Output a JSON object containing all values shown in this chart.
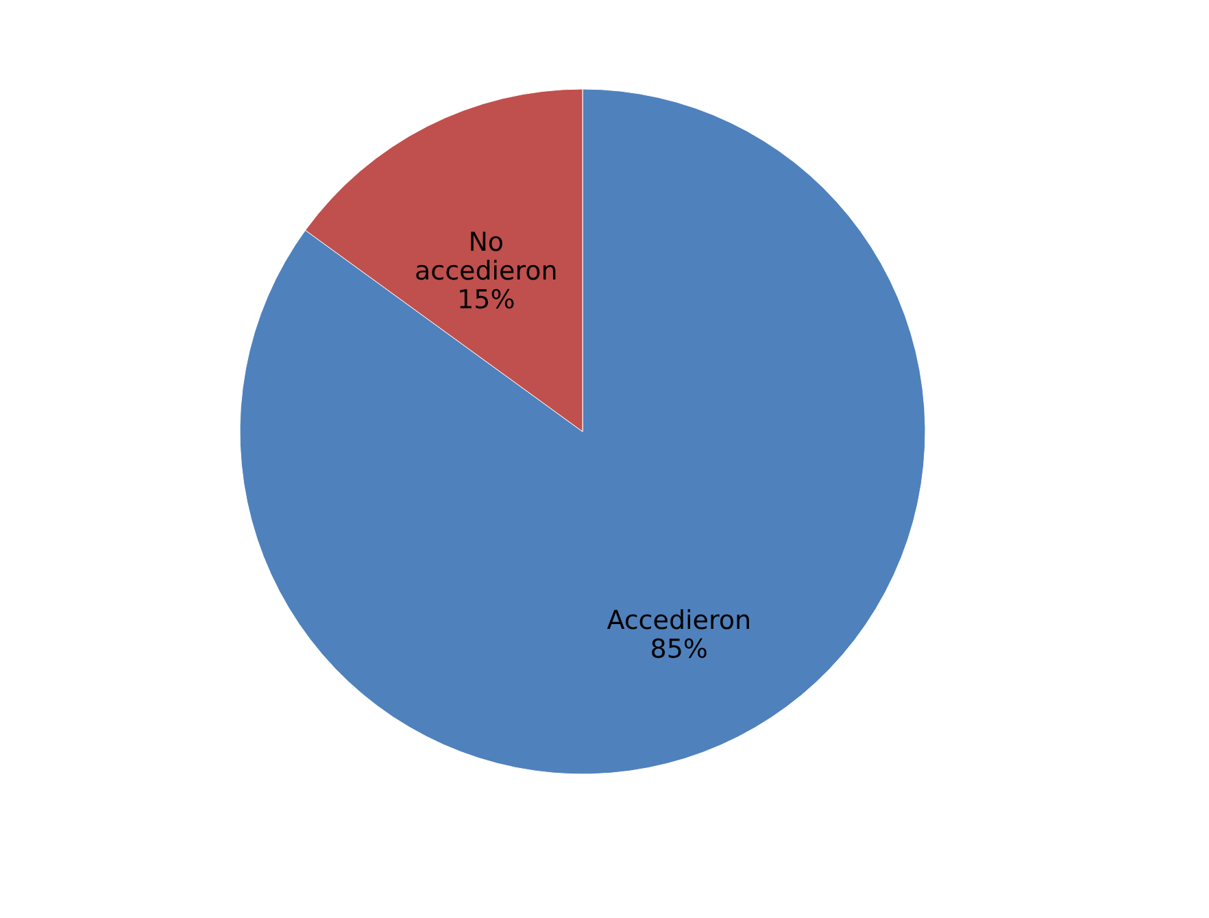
{
  "chart_data": {
    "type": "pie",
    "categories": [
      "Accedieron",
      "No accedieron"
    ],
    "values": [
      85,
      15
    ],
    "colors": [
      "#4f81bd",
      "#c0504d"
    ],
    "value_labels": [
      "85%",
      "15%"
    ],
    "legend": false
  }
}
